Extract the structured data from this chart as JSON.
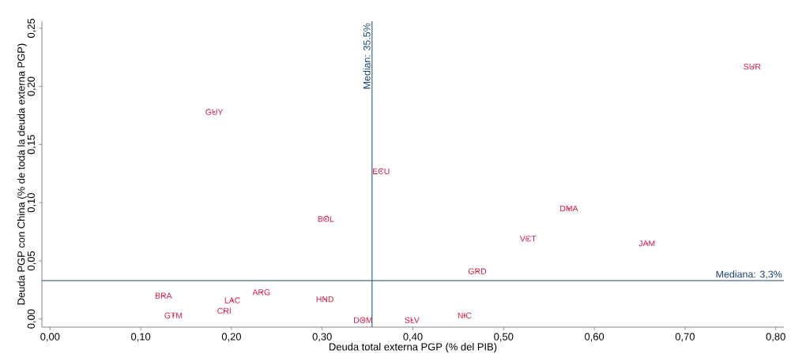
{
  "chart_data": {
    "type": "scatter",
    "xlabel": "Deuda total externa PGP (% del PIB)",
    "ylabel": "Deuda PGP con China (% de toda la deuda externa PGP)",
    "xlim": [
      -0.009,
      0.809
    ],
    "ylim": [
      -0.007,
      0.256
    ],
    "xticks": [
      {
        "value": 0,
        "label": "0,00"
      },
      {
        "value": 0.1,
        "label": "0,10"
      },
      {
        "value": 0.2,
        "label": "0,20"
      },
      {
        "value": 0.3,
        "label": "0,30"
      },
      {
        "value": 0.4,
        "label": "0,40"
      },
      {
        "value": 0.5,
        "label": "0,50"
      },
      {
        "value": 0.6,
        "label": "0,60"
      },
      {
        "value": 0.7,
        "label": "0,70"
      },
      {
        "value": 0.8,
        "label": "0,80"
      }
    ],
    "yticks": [
      {
        "value": 0,
        "label": "0,00"
      },
      {
        "value": 0.05,
        "label": "0,05"
      },
      {
        "value": 0.1,
        "label": "0,10"
      },
      {
        "value": 0.15,
        "label": "0,15"
      },
      {
        "value": 0.2,
        "label": "0,20"
      },
      {
        "value": 0.25,
        "label": "0,25"
      }
    ],
    "marker": "circle",
    "grid": false,
    "series": [
      {
        "color": "#d01c44",
        "x": [
          0.181,
          0.774,
          0.365,
          0.304,
          0.572,
          0.527,
          0.658,
          0.471,
          0.125,
          0.233,
          0.201,
          0.303,
          0.192,
          0.136,
          0.345,
          0.399,
          0.457
        ],
        "values": [
          0.178,
          0.217,
          0.127,
          0.086,
          0.095,
          0.069,
          0.065,
          0.041,
          0.02,
          0.023,
          0.016,
          0.017,
          0.007,
          0.003,
          -0.001,
          -0.001,
          0.003
        ],
        "value_labels": [
          "GUY",
          "SUR",
          "ECU",
          "BOL",
          "DMA",
          "VCT",
          "JAM",
          "GRD",
          "BRA",
          "ARG",
          "LAC",
          "HND",
          "CRI",
          "GTM",
          "DOM",
          "SLV",
          "NIC"
        ]
      }
    ],
    "ref_lines": [
      {
        "axis": "x",
        "value": 0.355,
        "label": "Median: 35.5%",
        "color": "#1a476f"
      },
      {
        "axis": "y",
        "value": 0.033,
        "label": "Mediana: 3,3%",
        "color": "#1a476f"
      }
    ]
  }
}
